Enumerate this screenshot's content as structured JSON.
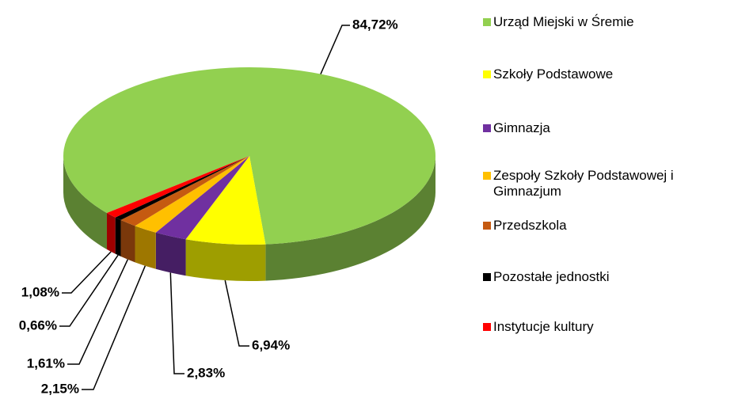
{
  "chart_data": {
    "type": "pie",
    "categories": [
      "Urząd Miejski w Śremie",
      "Szkoły Podstawowe",
      "Gimnazja",
      "Zespoły Szkoły Podstawowej i Gimnazjum",
      "Przedszkola",
      "Pozostałe jednostki",
      "Instytucje kultury"
    ],
    "values": [
      84.72,
      6.94,
      2.83,
      2.15,
      1.61,
      0.66,
      1.08
    ],
    "value_labels": [
      "84,72%",
      "6,94%",
      "2,83%",
      "2,15%",
      "1,61%",
      "0,66%",
      "1,08%"
    ],
    "colors": [
      "#92d050",
      "#ffff00",
      "#7030a0",
      "#ffc000",
      "#c55a11",
      "#000000",
      "#ff0000"
    ],
    "legend": "right"
  }
}
